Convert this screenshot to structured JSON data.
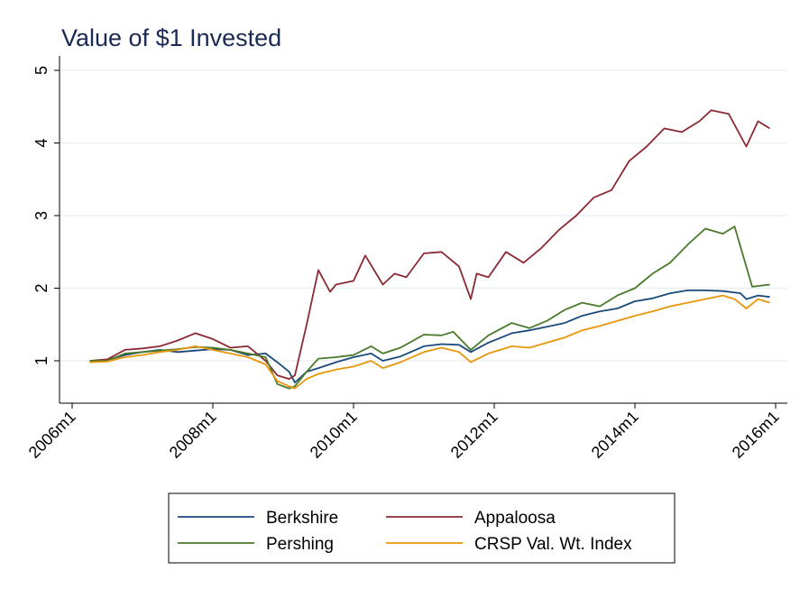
{
  "chart_data": {
    "type": "line",
    "title": "Value of $1 Invested",
    "xlabel": "",
    "ylabel": "",
    "x_range": [
      "2006-01",
      "2016-01"
    ],
    "ylim": [
      0.55,
      5.1
    ],
    "yticks": [
      1,
      2,
      3,
      4,
      5
    ],
    "ytick_labels": [
      "1",
      "2",
      "3",
      "4",
      "5"
    ],
    "xticks": [
      "2006-01",
      "2008-01",
      "2010-01",
      "2012-01",
      "2014-01",
      "2016-01"
    ],
    "xtick_labels": [
      "2006m1",
      "2008m1",
      "2010m1",
      "2012m1",
      "2014m1",
      "2016m1"
    ],
    "grid": true,
    "legend_position": "bottom",
    "series": [
      {
        "name": "Berkshire",
        "color": "#1a4a7a",
        "points": [
          [
            "2006-04",
            1.0
          ],
          [
            "2006-07",
            1.01
          ],
          [
            "2006-10",
            1.08
          ],
          [
            "2007-01",
            1.12
          ],
          [
            "2007-04",
            1.15
          ],
          [
            "2007-07",
            1.12
          ],
          [
            "2007-10",
            1.14
          ],
          [
            "2008-01",
            1.16
          ],
          [
            "2008-04",
            1.15
          ],
          [
            "2008-07",
            1.08
          ],
          [
            "2008-10",
            1.1
          ],
          [
            "2008-12",
            0.98
          ],
          [
            "2009-02",
            0.85
          ],
          [
            "2009-03",
            0.7
          ],
          [
            "2009-05",
            0.85
          ],
          [
            "2009-07",
            0.9
          ],
          [
            "2009-10",
            0.98
          ],
          [
            "2010-01",
            1.05
          ],
          [
            "2010-04",
            1.1
          ],
          [
            "2010-06",
            1.0
          ],
          [
            "2010-09",
            1.06
          ],
          [
            "2011-01",
            1.2
          ],
          [
            "2011-04",
            1.23
          ],
          [
            "2011-07",
            1.22
          ],
          [
            "2011-09",
            1.12
          ],
          [
            "2011-12",
            1.25
          ],
          [
            "2012-04",
            1.38
          ],
          [
            "2012-07",
            1.42
          ],
          [
            "2012-10",
            1.47
          ],
          [
            "2013-01",
            1.52
          ],
          [
            "2013-04",
            1.62
          ],
          [
            "2013-07",
            1.68
          ],
          [
            "2013-10",
            1.72
          ],
          [
            "2014-01",
            1.82
          ],
          [
            "2014-04",
            1.86
          ],
          [
            "2014-07",
            1.93
          ],
          [
            "2014-10",
            1.97
          ],
          [
            "2015-01",
            1.97
          ],
          [
            "2015-04",
            1.96
          ],
          [
            "2015-07",
            1.93
          ],
          [
            "2015-08",
            1.85
          ],
          [
            "2015-10",
            1.9
          ],
          [
            "2015-12",
            1.88
          ]
        ]
      },
      {
        "name": "Appaloosa",
        "color": "#8b2a34",
        "points": [
          [
            "2006-04",
            1.0
          ],
          [
            "2006-07",
            1.02
          ],
          [
            "2006-10",
            1.15
          ],
          [
            "2007-01",
            1.17
          ],
          [
            "2007-04",
            1.2
          ],
          [
            "2007-07",
            1.28
          ],
          [
            "2007-10",
            1.38
          ],
          [
            "2008-01",
            1.3
          ],
          [
            "2008-04",
            1.18
          ],
          [
            "2008-07",
            1.2
          ],
          [
            "2008-10",
            1.0
          ],
          [
            "2008-12",
            0.8
          ],
          [
            "2009-02",
            0.75
          ],
          [
            "2009-03",
            0.8
          ],
          [
            "2009-05",
            1.5
          ],
          [
            "2009-07",
            2.25
          ],
          [
            "2009-09",
            1.95
          ],
          [
            "2009-10",
            2.05
          ],
          [
            "2010-01",
            2.1
          ],
          [
            "2010-03",
            2.45
          ],
          [
            "2010-06",
            2.05
          ],
          [
            "2010-08",
            2.2
          ],
          [
            "2010-10",
            2.15
          ],
          [
            "2011-01",
            2.48
          ],
          [
            "2011-04",
            2.5
          ],
          [
            "2011-07",
            2.3
          ],
          [
            "2011-09",
            1.85
          ],
          [
            "2011-10",
            2.2
          ],
          [
            "2011-12",
            2.15
          ],
          [
            "2012-03",
            2.5
          ],
          [
            "2012-06",
            2.35
          ],
          [
            "2012-09",
            2.55
          ],
          [
            "2012-12",
            2.8
          ],
          [
            "2013-03",
            3.0
          ],
          [
            "2013-06",
            3.25
          ],
          [
            "2013-09",
            3.35
          ],
          [
            "2013-12",
            3.75
          ],
          [
            "2014-03",
            3.95
          ],
          [
            "2014-06",
            4.2
          ],
          [
            "2014-09",
            4.15
          ],
          [
            "2014-12",
            4.3
          ],
          [
            "2015-02",
            4.45
          ],
          [
            "2015-05",
            4.4
          ],
          [
            "2015-08",
            3.95
          ],
          [
            "2015-10",
            4.3
          ],
          [
            "2015-12",
            4.2
          ]
        ]
      },
      {
        "name": "Pershing",
        "color": "#4a7a2a",
        "points": [
          [
            "2006-04",
            1.0
          ],
          [
            "2006-07",
            1.0
          ],
          [
            "2006-10",
            1.1
          ],
          [
            "2007-01",
            1.12
          ],
          [
            "2007-04",
            1.14
          ],
          [
            "2007-07",
            1.16
          ],
          [
            "2007-10",
            1.19
          ],
          [
            "2008-01",
            1.18
          ],
          [
            "2008-04",
            1.15
          ],
          [
            "2008-07",
            1.1
          ],
          [
            "2008-10",
            1.05
          ],
          [
            "2008-12",
            0.68
          ],
          [
            "2009-02",
            0.62
          ],
          [
            "2009-03",
            0.65
          ],
          [
            "2009-05",
            0.85
          ],
          [
            "2009-07",
            1.03
          ],
          [
            "2009-10",
            1.05
          ],
          [
            "2010-01",
            1.08
          ],
          [
            "2010-04",
            1.2
          ],
          [
            "2010-06",
            1.1
          ],
          [
            "2010-09",
            1.18
          ],
          [
            "2011-01",
            1.36
          ],
          [
            "2011-04",
            1.35
          ],
          [
            "2011-06",
            1.4
          ],
          [
            "2011-09",
            1.15
          ],
          [
            "2011-12",
            1.35
          ],
          [
            "2012-04",
            1.52
          ],
          [
            "2012-07",
            1.45
          ],
          [
            "2012-10",
            1.55
          ],
          [
            "2013-01",
            1.7
          ],
          [
            "2013-04",
            1.8
          ],
          [
            "2013-07",
            1.75
          ],
          [
            "2013-10",
            1.9
          ],
          [
            "2014-01",
            2.0
          ],
          [
            "2014-04",
            2.2
          ],
          [
            "2014-07",
            2.35
          ],
          [
            "2014-10",
            2.6
          ],
          [
            "2015-01",
            2.82
          ],
          [
            "2015-04",
            2.75
          ],
          [
            "2015-06",
            2.85
          ],
          [
            "2015-09",
            2.02
          ],
          [
            "2015-12",
            2.05
          ]
        ]
      },
      {
        "name": "CRSP Val. Wt. Index",
        "color": "#e8960a",
        "points": [
          [
            "2006-04",
            0.98
          ],
          [
            "2006-07",
            0.99
          ],
          [
            "2006-10",
            1.05
          ],
          [
            "2007-01",
            1.08
          ],
          [
            "2007-04",
            1.12
          ],
          [
            "2007-07",
            1.15
          ],
          [
            "2007-10",
            1.2
          ],
          [
            "2008-01",
            1.15
          ],
          [
            "2008-04",
            1.1
          ],
          [
            "2008-07",
            1.05
          ],
          [
            "2008-10",
            0.95
          ],
          [
            "2008-12",
            0.72
          ],
          [
            "2009-02",
            0.65
          ],
          [
            "2009-03",
            0.62
          ],
          [
            "2009-05",
            0.75
          ],
          [
            "2009-07",
            0.82
          ],
          [
            "2009-10",
            0.88
          ],
          [
            "2010-01",
            0.92
          ],
          [
            "2010-04",
            1.0
          ],
          [
            "2010-06",
            0.9
          ],
          [
            "2010-09",
            0.98
          ],
          [
            "2011-01",
            1.12
          ],
          [
            "2011-04",
            1.18
          ],
          [
            "2011-07",
            1.12
          ],
          [
            "2011-09",
            0.98
          ],
          [
            "2011-12",
            1.1
          ],
          [
            "2012-04",
            1.2
          ],
          [
            "2012-07",
            1.18
          ],
          [
            "2012-10",
            1.25
          ],
          [
            "2013-01",
            1.32
          ],
          [
            "2013-04",
            1.42
          ],
          [
            "2013-07",
            1.48
          ],
          [
            "2013-10",
            1.55
          ],
          [
            "2014-01",
            1.62
          ],
          [
            "2014-04",
            1.68
          ],
          [
            "2014-07",
            1.75
          ],
          [
            "2014-10",
            1.8
          ],
          [
            "2015-01",
            1.85
          ],
          [
            "2015-04",
            1.9
          ],
          [
            "2015-06",
            1.85
          ],
          [
            "2015-08",
            1.72
          ],
          [
            "2015-10",
            1.85
          ],
          [
            "2015-12",
            1.8
          ]
        ]
      }
    ]
  }
}
